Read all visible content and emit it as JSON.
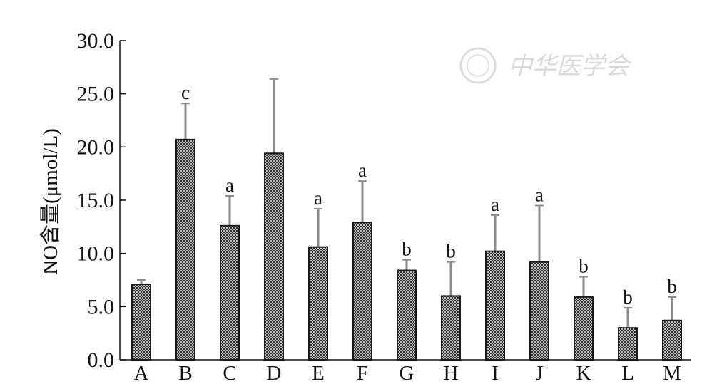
{
  "watermark": {
    "text": "中华医学会"
  },
  "chart_data": {
    "type": "bar",
    "title": "",
    "xlabel": "",
    "ylabel": "NO含量(μmol/L)",
    "ylim": [
      0,
      30
    ],
    "yticks": [
      0,
      5,
      10,
      15,
      20,
      25,
      30
    ],
    "ytick_labels": [
      "0.0",
      "5.0",
      "10.0",
      "15.0",
      "20.0",
      "25.0",
      "30.0"
    ],
    "categories": [
      "A",
      "B",
      "C",
      "D",
      "E",
      "F",
      "G",
      "H",
      "I",
      "J",
      "K",
      "L",
      "M"
    ],
    "values": [
      7.1,
      20.7,
      12.6,
      19.4,
      10.6,
      12.9,
      8.4,
      6.0,
      10.2,
      9.2,
      5.9,
      3.0,
      3.7
    ],
    "error_upper": [
      7.5,
      24.1,
      15.4,
      26.4,
      14.2,
      16.8,
      9.4,
      9.2,
      13.6,
      14.5,
      7.8,
      4.9,
      5.9
    ],
    "significance": [
      "",
      "c",
      "a",
      "",
      "a",
      "a",
      "b",
      "b",
      "a",
      "a",
      "b",
      "b",
      "b"
    ],
    "grid": false,
    "colors": {
      "bar_fill": "#ffffff",
      "hatch": "#1a1a1a",
      "bar_edge": "#1a1a1a",
      "error_bar": "#8a8a8a",
      "axis": "#111111",
      "watermark": "#d6d6d6"
    }
  }
}
